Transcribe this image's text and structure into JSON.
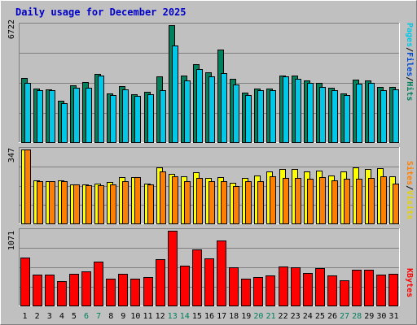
{
  "chart_data": {
    "type": "bar",
    "title": "Daily usage for December 2025",
    "categories": [
      "1",
      "2",
      "3",
      "4",
      "5",
      "6",
      "7",
      "8",
      "9",
      "10",
      "11",
      "12",
      "13",
      "14",
      "15",
      "16",
      "17",
      "18",
      "19",
      "20",
      "21",
      "22",
      "23",
      "24",
      "25",
      "26",
      "27",
      "28",
      "29",
      "30",
      "31"
    ],
    "weekend_days": [
      "6",
      "7",
      "13",
      "14",
      "20",
      "21",
      "27",
      "28"
    ],
    "panels": [
      {
        "name": "hits-files-pages",
        "ymax_label": "6722",
        "ylim": [
          0,
          6722
        ],
        "legend": [
          "Pages",
          "Files",
          "Hits"
        ],
        "series": [
          {
            "name": "Hits",
            "color": "#00805c",
            "values": [
              3690,
              3080,
              3050,
              2370,
              3290,
              3440,
              3930,
              2800,
              3240,
              2770,
              2890,
              3780,
              6722,
              3810,
              4500,
              4020,
              5340,
              3630,
              2850,
              3090,
              3090,
              3840,
              3820,
              3540,
              3400,
              3140,
              2810,
              3580,
              3560,
              3180,
              3170
            ]
          },
          {
            "name": "Files",
            "color": "#00c8e6",
            "values": [
              3430,
              3000,
              2980,
              2230,
              3140,
              3150,
              3810,
              2700,
              3040,
              2640,
              2760,
              3000,
              5550,
              3540,
              4200,
              3800,
              3980,
              3300,
              2700,
              3000,
              2980,
              3770,
              3650,
              3430,
              3170,
              2980,
              2690,
              3380,
              3400,
              3000,
              3050
            ]
          },
          {
            "name": "Pages",
            "color": "#00c8e6",
            "values": [
              0,
              0,
              0,
              0,
              0,
              0,
              0,
              0,
              0,
              0,
              0,
              0,
              0,
              0,
              0,
              0,
              0,
              0,
              0,
              0,
              0,
              0,
              0,
              0,
              0,
              0,
              0,
              0,
              0,
              0,
              0
            ]
          }
        ]
      },
      {
        "name": "visits-sites",
        "ymax_label": "347",
        "ylim": [
          0,
          347
        ],
        "legend": [
          "Sites",
          "Visits"
        ],
        "series": [
          {
            "name": "Visits",
            "color": "#ffff00",
            "values": [
              347,
              204,
              200,
              204,
              184,
              182,
              188,
              194,
              218,
              218,
              188,
              262,
              232,
              220,
              240,
              212,
              218,
              190,
              212,
              224,
              245,
              256,
              256,
              244,
              248,
              224,
              244,
              265,
              256,
              258,
              222
            ]
          },
          {
            "name": "Sites",
            "color": "#ff8000",
            "values": [
              347,
              200,
              200,
              200,
              184,
              180,
              180,
              184,
              200,
              218,
              184,
              245,
              222,
              200,
              212,
              200,
              200,
              174,
              198,
              200,
              220,
              212,
              212,
              210,
              218,
              204,
              210,
              210,
              212,
              220,
              188
            ]
          }
        ]
      },
      {
        "name": "kbytes",
        "ymax_label": "1071",
        "ylim": [
          0,
          1071
        ],
        "legend": [
          "KBytes"
        ],
        "series": [
          {
            "name": "KBytes",
            "color": "#ff0000",
            "values": [
              688,
              443,
              440,
              355,
              450,
              493,
              631,
              381,
              458,
              389,
              403,
              660,
              1071,
              572,
              804,
              676,
              930,
              546,
              381,
              410,
              430,
              563,
              548,
              467,
              531,
              427,
              364,
              516,
              516,
              445,
              452
            ]
          }
        ]
      }
    ]
  }
}
